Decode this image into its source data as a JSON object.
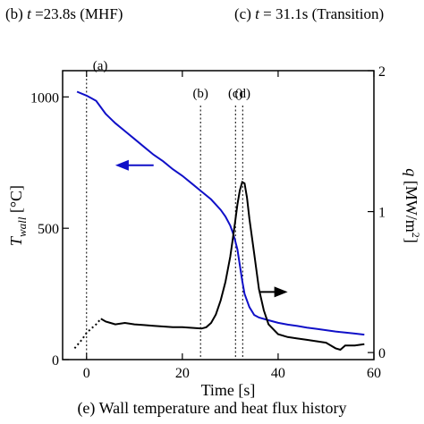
{
  "header": {
    "panel_b": [
      "(b) ",
      "t",
      " =23.8s (MHF)"
    ],
    "panel_c": [
      "(c) ",
      "t",
      " = 31.1s (Transition)"
    ]
  },
  "caption": "(e) Wall temperature and heat flux history",
  "chart_data": {
    "type": "line",
    "title": "",
    "xlabel": "Time [s]",
    "ylabel_left": [
      "T",
      "wall",
      " [°C]"
    ],
    "ylabel_right": [
      "q",
      " [MW/m",
      "2",
      "]"
    ],
    "xlim": [
      -5,
      60
    ],
    "ylim_left": [
      0,
      1100
    ],
    "ylim_right": [
      -0.05,
      2
    ],
    "x_ticks": [
      0,
      20,
      40,
      60
    ],
    "y_left_ticks": [
      0,
      500,
      1000
    ],
    "y_right_ticks": [
      0,
      1,
      2
    ],
    "grid": false,
    "colors": {
      "wall_temperature": "#1010c8",
      "heat_flux": "#000000"
    },
    "series": [
      {
        "axis": "left",
        "style": "solid",
        "x": [
          -2,
          0,
          1,
          2,
          4,
          6,
          8,
          10,
          12,
          14,
          16,
          18,
          20,
          22,
          24,
          26,
          28,
          29,
          30,
          30.5,
          31,
          31.5,
          32,
          32.5,
          33,
          34,
          35,
          36,
          38,
          40,
          42,
          44,
          46,
          48,
          50,
          52,
          54,
          56,
          58
        ],
        "values": [
          1020,
          1005,
          995,
          985,
          935,
          900,
          870,
          840,
          810,
          780,
          755,
          725,
          700,
          670,
          640,
          610,
          570,
          545,
          510,
          485,
          455,
          420,
          360,
          300,
          250,
          200,
          170,
          160,
          150,
          140,
          133,
          128,
          122,
          117,
          112,
          107,
          103,
          99,
          95
        ]
      },
      {
        "axis": "right",
        "style": "dotted",
        "x": [
          -2.5,
          -1,
          0,
          1,
          2,
          3
        ],
        "values": [
          0.03,
          0.09,
          0.14,
          0.17,
          0.2,
          0.24
        ]
      },
      {
        "axis": "right",
        "style": "solid",
        "x": [
          3,
          4,
          5,
          6,
          8,
          10,
          12,
          14,
          16,
          18,
          20,
          22,
          24,
          25,
          26,
          27,
          28,
          29,
          30,
          30.5,
          31,
          31.5,
          32,
          32.5,
          33,
          33.5,
          34,
          35,
          36,
          37,
          38,
          40,
          42,
          44,
          46,
          48,
          50,
          51,
          52,
          53,
          54,
          56,
          58
        ],
        "values": [
          0.24,
          0.22,
          0.21,
          0.2,
          0.21,
          0.2,
          0.195,
          0.19,
          0.185,
          0.18,
          0.18,
          0.175,
          0.17,
          0.18,
          0.21,
          0.27,
          0.37,
          0.5,
          0.68,
          0.8,
          0.92,
          1.05,
          1.15,
          1.21,
          1.2,
          1.1,
          0.95,
          0.7,
          0.45,
          0.3,
          0.2,
          0.13,
          0.11,
          0.1,
          0.09,
          0.08,
          0.07,
          0.05,
          0.03,
          0.02,
          0.05,
          0.05,
          0.06
        ]
      }
    ],
    "markers": [
      {
        "label": "(a)",
        "x": 0
      },
      {
        "label": "(b)",
        "x": 23.8
      },
      {
        "label": "(c)",
        "x": 31.1
      },
      {
        "label": "(d)",
        "x": 32.6
      }
    ],
    "arrows": [
      {
        "target_axis": "left",
        "x_from": 14,
        "x_to": 6,
        "y": 740
      },
      {
        "target_axis": "right",
        "x_from": 36,
        "x_to": 42,
        "y": 0.43
      }
    ]
  }
}
